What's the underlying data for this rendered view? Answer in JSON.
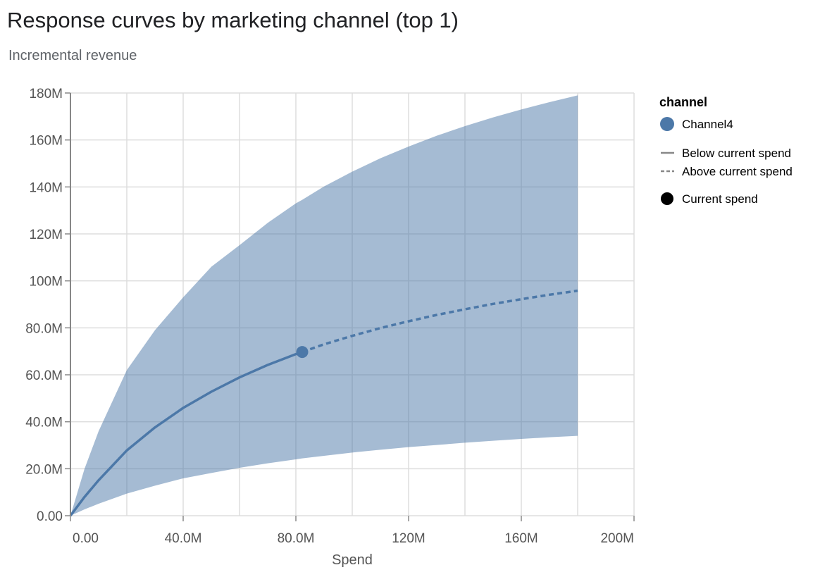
{
  "chart_data": {
    "type": "line",
    "title": "Response curves by marketing channel (top 1)",
    "subtitle": "Incremental revenue",
    "xlabel": "Spend",
    "ylabel": "",
    "xlim": [
      0,
      200000000
    ],
    "ylim": [
      0,
      180000000
    ],
    "x_ticks": [
      "0.00",
      "40.0M",
      "80.0M",
      "120M",
      "160M",
      "200M"
    ],
    "y_ticks": [
      "0.00",
      "20.0M",
      "40.0M",
      "60.0M",
      "80.0M",
      "100M",
      "120M",
      "140M",
      "160M",
      "180M"
    ],
    "grid": true,
    "legend": {
      "title": "channel",
      "position": "right",
      "entries": [
        "Channel4"
      ],
      "line_entries": [
        "Below current spend",
        "Above current spend"
      ],
      "point_entry": "Current spend"
    },
    "colors": {
      "channel4": "#4c78a8",
      "band": "#a5b9d2",
      "grid": "#dddddd",
      "axis": "#888888"
    },
    "series": [
      {
        "name": "Channel4",
        "x_millions": [
          0,
          5,
          10,
          20,
          30,
          40,
          50,
          60,
          70,
          80,
          82.25,
          90,
          100,
          110,
          120,
          130,
          140,
          150,
          160,
          170,
          180
        ],
        "mean_millions": [
          0,
          8.0,
          15.1,
          27.8,
          37.6,
          45.9,
          52.8,
          58.9,
          64.2,
          68.8,
          69.7,
          73.0,
          76.6,
          79.9,
          82.8,
          85.5,
          87.9,
          90.2,
          92.2,
          94.1,
          95.8
        ],
        "upper_millions": [
          0,
          20,
          36,
          62,
          79,
          93,
          106,
          115.2,
          124.7,
          133,
          134.5,
          140.2,
          146.5,
          152.2,
          157.2,
          161.8,
          165.9,
          169.6,
          173.0,
          176.1,
          179
        ],
        "lower_millions": [
          0,
          2.7,
          5.1,
          9.4,
          12.8,
          15.9,
          18.2,
          20.4,
          22.3,
          24.0,
          24.4,
          25.5,
          26.9,
          28.1,
          29.2,
          30.1,
          31.1,
          31.9,
          32.7,
          33.4,
          34.0
        ]
      }
    ],
    "current_spend": {
      "x_millions": 82.25,
      "y_millions": 69.7
    }
  }
}
